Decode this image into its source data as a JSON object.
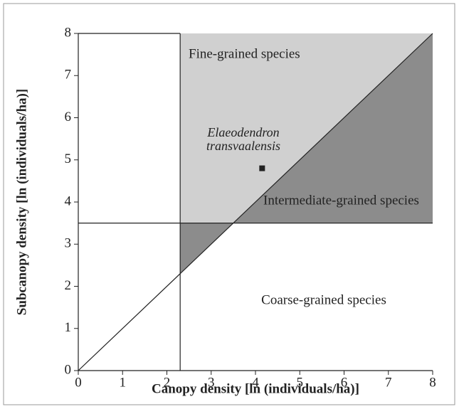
{
  "chart_data": {
    "type": "scatter",
    "xlabel": "Canopy density [ln (individuals/ha)]",
    "ylabel": "Subcanopy density [ln (individuals/ha)]",
    "xlim": [
      0,
      8
    ],
    "ylim": [
      0,
      8
    ],
    "xticks": [
      0,
      1,
      2,
      3,
      4,
      5,
      6,
      7,
      8
    ],
    "yticks": [
      0,
      1,
      2,
      3,
      4,
      5,
      6,
      7,
      8
    ],
    "x_threshold": 2.3,
    "y_threshold": 3.5,
    "x": [
      4.15
    ],
    "values": [
      4.8
    ],
    "color": "#222222",
    "point_label": [
      "Elaeodendron",
      "transvaalensis"
    ],
    "regions": [
      "Fine-grained species",
      "Intermediate-grained species",
      "Coarse-grained species"
    ],
    "region_colors": [
      "#d0d0d0",
      "#8c8c8c"
    ]
  }
}
